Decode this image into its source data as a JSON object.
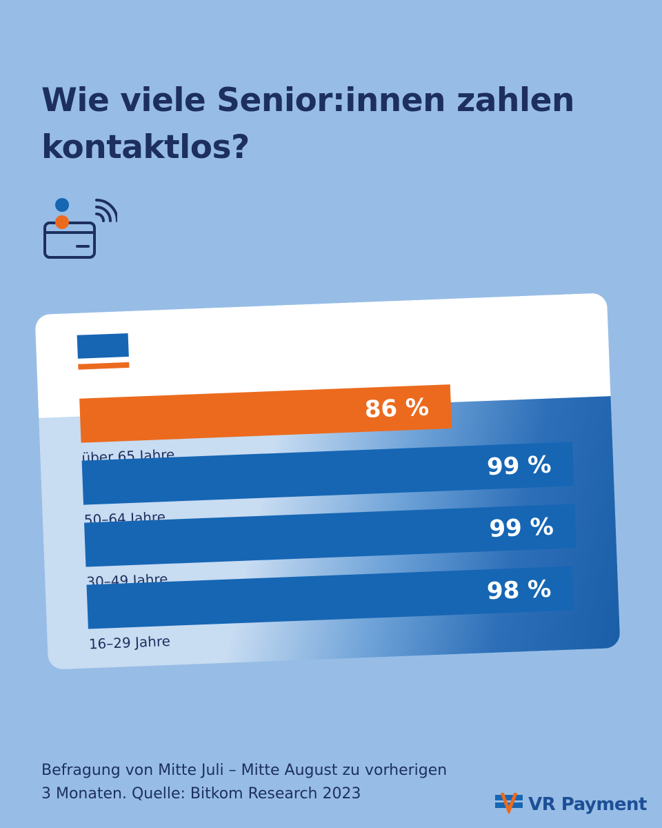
{
  "header": {
    "title_line1": "Wie viele Senior:innen zahlen",
    "title_line2": "kontaktlos?"
  },
  "icons": {
    "header_icon": "contactless-card-person-icon",
    "brand_icon": "vr-logo-icon"
  },
  "colors": {
    "background": "#97bde6",
    "navy": "#1d2f5e",
    "blue": "#1666b4",
    "orange": "#ec6a1e",
    "white": "#ffffff"
  },
  "chart_data": {
    "type": "bar",
    "orientation": "horizontal",
    "title": "Wie viele Senior:innen zahlen kontaktlos?",
    "unit": "%",
    "xlim": [
      0,
      100
    ],
    "categories": [
      "über 65 Jahre",
      "50–64 Jahre",
      "30–49 Jahre",
      "16–29 Jahre"
    ],
    "values": [
      86,
      99,
      99,
      98
    ],
    "value_labels": [
      "86 %",
      "99 %",
      "99 %",
      "98 %"
    ],
    "highlight": [
      "orange",
      "blue",
      "blue",
      "blue"
    ]
  },
  "footer": {
    "note_line1": "Befragung von Mitte Juli – Mitte August zu vorherigen",
    "note_line2": "3 Monaten. Quelle: Bitkom Research 2023",
    "brand": "VR Payment"
  }
}
